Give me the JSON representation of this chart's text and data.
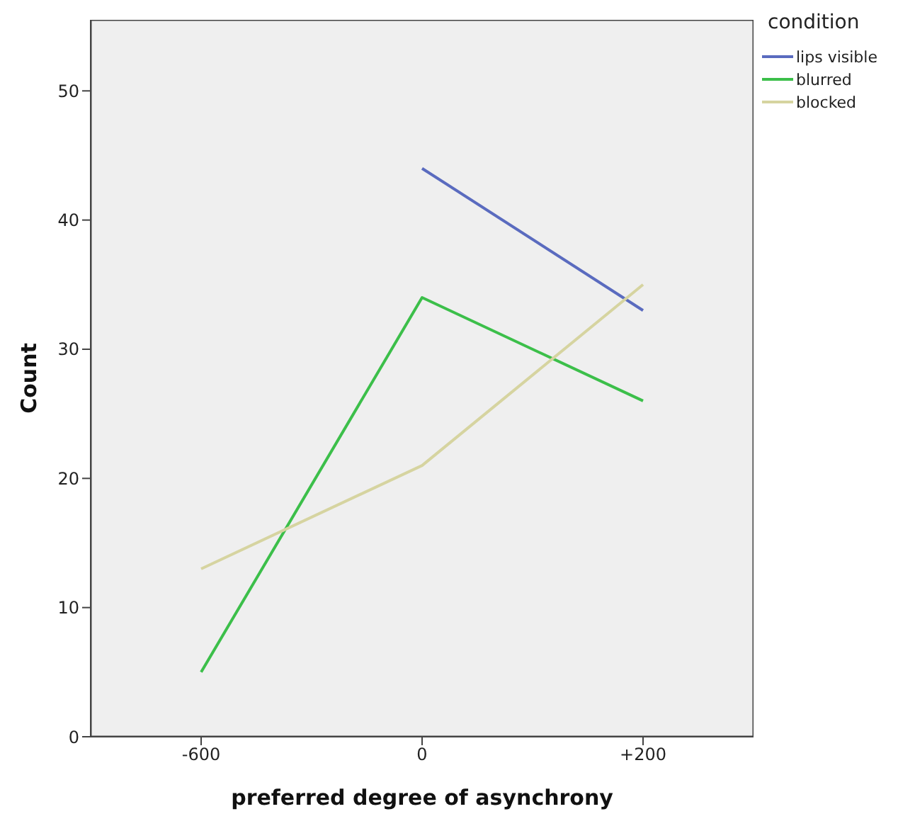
{
  "chart_data": {
    "type": "line",
    "xlabel": "preferred degree of asynchrony",
    "ylabel": "Count",
    "legend_title": "condition",
    "legend": "top right",
    "marker": "none",
    "categories": [
      "-600",
      "0",
      "+200"
    ],
    "ylim": [
      0,
      55.5
    ],
    "yticks": [
      0,
      10,
      20,
      30,
      40,
      50
    ],
    "series": [
      {
        "name": "lips visible",
        "color": "#5a6bbf",
        "values": [
          null,
          44,
          33
        ]
      },
      {
        "name": "blurred",
        "color": "#3cbf4a",
        "values": [
          5,
          34,
          26
        ]
      },
      {
        "name": "blocked",
        "color": "#d6d4a0",
        "values": [
          13,
          21,
          35
        ]
      }
    ]
  }
}
